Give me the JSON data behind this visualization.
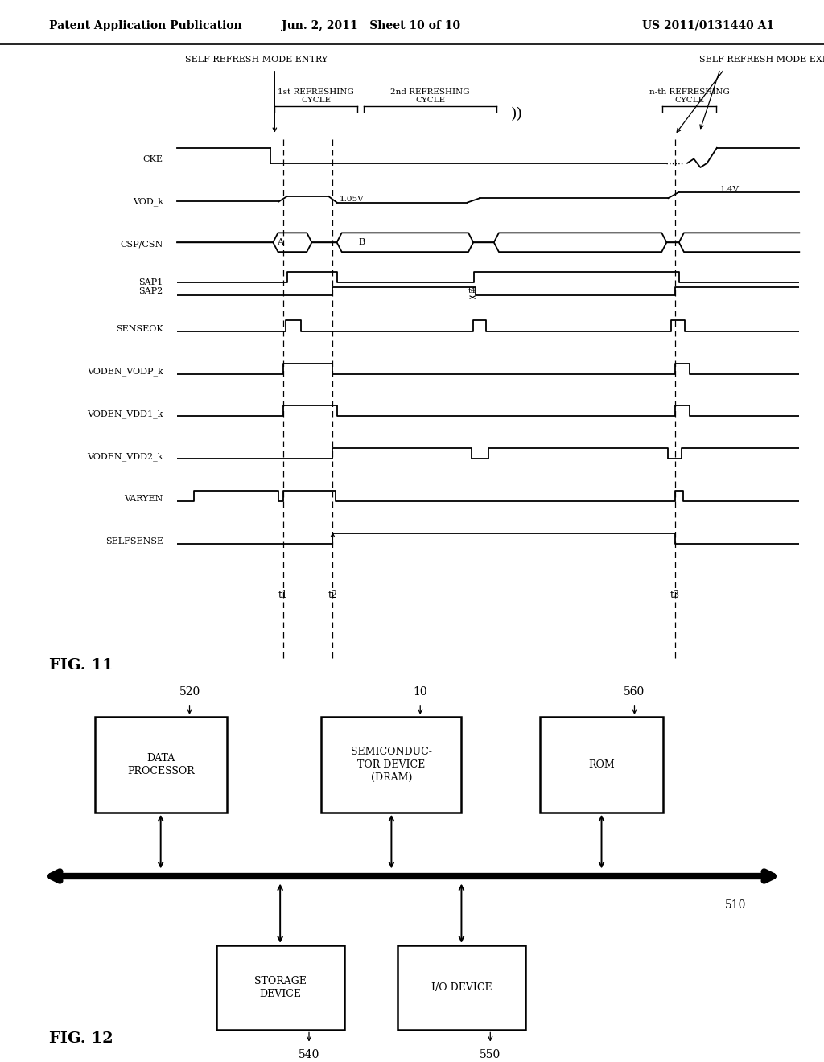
{
  "header": {
    "left": "Patent Application Publication",
    "center": "Jun. 2, 2011   Sheet 10 of 10",
    "right": "US 2011/0131440 A1"
  },
  "fig11_label": "FIG. 11",
  "fig12_label": "FIG. 12",
  "bg_color": "#ffffff"
}
